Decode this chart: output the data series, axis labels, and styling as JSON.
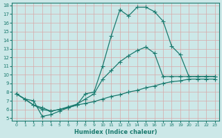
{
  "line1_x": [
    0,
    1,
    2,
    3,
    4,
    5,
    6,
    7,
    8,
    9,
    10,
    11,
    12,
    13,
    14,
    15,
    16,
    17,
    18,
    19,
    20,
    21,
    22,
    23
  ],
  "line1_y": [
    7.8,
    7.2,
    7.0,
    5.2,
    5.4,
    5.8,
    6.2,
    6.5,
    7.8,
    8.0,
    11.0,
    14.5,
    17.5,
    16.8,
    17.8,
    17.8,
    17.3,
    16.2,
    13.3,
    12.3,
    9.8,
    9.8,
    9.8,
    9.8
  ],
  "line2_x": [
    0,
    2,
    3,
    4,
    5,
    6,
    7,
    8,
    9,
    10,
    11,
    12,
    13,
    14,
    15,
    16,
    17,
    18,
    19,
    20,
    21,
    22,
    23
  ],
  "line2_y": [
    7.8,
    6.5,
    6.0,
    5.8,
    6.0,
    6.3,
    6.6,
    7.2,
    7.8,
    9.5,
    10.5,
    11.5,
    12.2,
    12.8,
    13.2,
    12.5,
    9.8,
    9.8,
    9.8,
    9.8,
    9.8,
    9.8,
    9.8
  ],
  "line3_x": [
    0,
    1,
    2,
    3,
    4,
    5,
    6,
    7,
    8,
    9,
    10,
    11,
    12,
    13,
    14,
    15,
    16,
    17,
    18,
    19,
    20,
    21,
    22,
    23
  ],
  "line3_y": [
    7.8,
    7.2,
    6.5,
    6.2,
    5.8,
    6.0,
    6.2,
    6.5,
    6.7,
    6.9,
    7.2,
    7.5,
    7.7,
    8.0,
    8.2,
    8.5,
    8.7,
    9.0,
    9.2,
    9.3,
    9.5,
    9.5,
    9.5,
    9.5
  ],
  "line_color": "#1a7a6e",
  "bg_color": "#cce8e8",
  "grid_color": "#c8dada",
  "xlabel": "Humidex (Indice chaleur)",
  "ylim": [
    5,
    18
  ],
  "xlim": [
    -0.5,
    23.5
  ],
  "yticks": [
    5,
    6,
    7,
    8,
    9,
    10,
    11,
    12,
    13,
    14,
    15,
    16,
    17,
    18
  ],
  "xticks": [
    0,
    1,
    2,
    3,
    4,
    5,
    6,
    7,
    8,
    9,
    10,
    11,
    12,
    13,
    14,
    15,
    16,
    17,
    18,
    19,
    20,
    21,
    22,
    23
  ]
}
